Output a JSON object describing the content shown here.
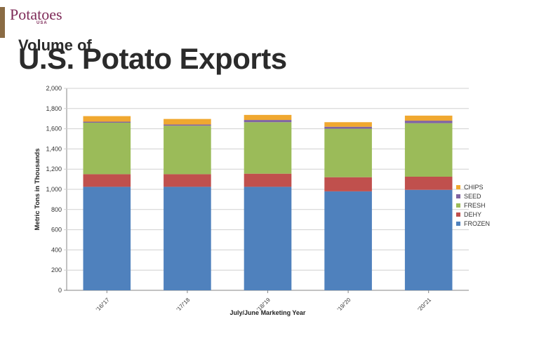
{
  "logo": {
    "word": "Potatoes",
    "sub": "USA"
  },
  "title": {
    "line1": "Volume of",
    "line2": "U.S. Potato Exports"
  },
  "chart_data": {
    "type": "bar",
    "stacked": true,
    "categories": [
      "'16/'17",
      "'17/'18",
      "'18/'19",
      "'19/'20",
      "'20/'21"
    ],
    "series": [
      {
        "name": "FROZEN",
        "color": "#4f81bd",
        "values": [
          1025,
          1025,
          1025,
          980,
          995
        ]
      },
      {
        "name": "DEHY",
        "color": "#c0504d",
        "values": [
          125,
          125,
          130,
          140,
          130
        ]
      },
      {
        "name": "FRESH",
        "color": "#9bbb59",
        "values": [
          510,
          480,
          510,
          480,
          530
        ]
      },
      {
        "name": "SEED",
        "color": "#8064a2",
        "values": [
          10,
          12,
          22,
          20,
          25
        ]
      },
      {
        "name": "CHIPS",
        "color": "#f0a830",
        "values": [
          55,
          55,
          50,
          45,
          50
        ]
      }
    ],
    "ylim": [
      0,
      2000
    ],
    "yticks": [
      "0",
      "200",
      "400",
      "600",
      "800",
      "1,000",
      "1,200",
      "1,400",
      "1,600",
      "1,800",
      "2,000"
    ],
    "ylabel": "Metric Tons  in Thousands",
    "xlabel": "July/June Marketing Year",
    "grid": true,
    "legend_position": "right"
  }
}
